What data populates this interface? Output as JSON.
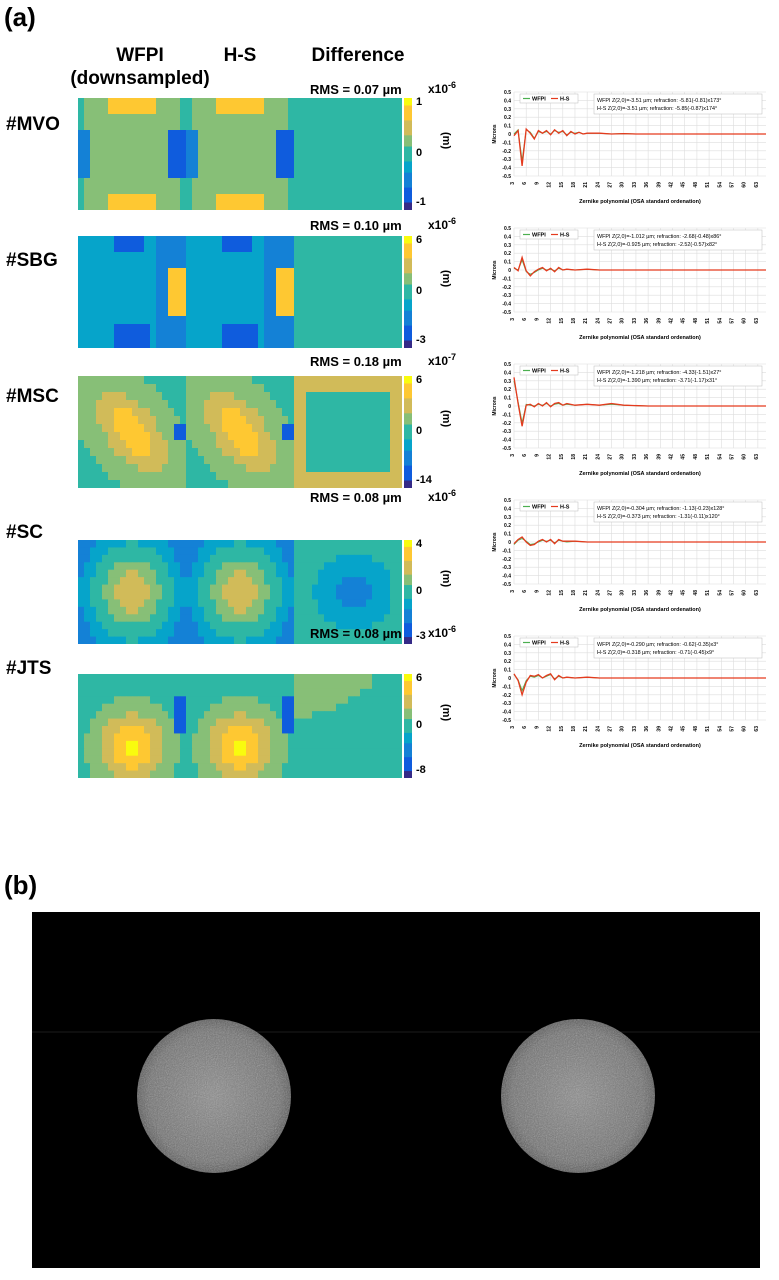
{
  "panel_a_label": "(a)",
  "panel_b_label": "(b)",
  "column_headers": {
    "wfpi": "WFPI\n(downsampled)",
    "hs": "H-S",
    "difference": "Difference"
  },
  "rows": [
    {
      "id": "#MVO",
      "rms": "RMS = 0.07 µm",
      "cbar_exp": "x10",
      "cbar_exp_sup": "-6",
      "cbar_ticks": [
        "1",
        "0",
        "-1"
      ],
      "cbar_unit": "(m)",
      "legend": [
        "WFPI",
        "H-S"
      ],
      "info_wfpi": "WFPI   Z(2,0)=-3.51 µm; refraction: -5.81(-0.81)x173°",
      "info_hs": "H-S    Z(2,0)=-3.51 µm; refraction: -5.85(-0.87)x174°"
    },
    {
      "id": "#SBG",
      "rms": "RMS = 0.10 µm",
      "cbar_exp": "x10",
      "cbar_exp_sup": "-6",
      "cbar_ticks": [
        "6",
        "0",
        "-3"
      ],
      "cbar_unit": "(m)",
      "legend": [
        "WFPI",
        "H-S"
      ],
      "info_wfpi": "WFPI   Z(2,0)=-1.012 µm; refraction: -2.68(-0.48)x86°",
      "info_hs": "H-S    Z(2,0)=-0.925 µm; refraction: -2.52(-0.57)x82°"
    },
    {
      "id": "#MSC",
      "rms": "RMS = 0.18 µm",
      "cbar_exp": "x10",
      "cbar_exp_sup": "-7",
      "cbar_ticks": [
        "6",
        "0",
        "-14"
      ],
      "cbar_unit": "(m)",
      "legend": [
        "WFPI",
        "H-S"
      ],
      "info_wfpi": "WFPI   Z(2,0)=-1.218 µm; refraction: -4.33(-1.51)x27°",
      "info_hs": "H-S    Z(2,0)=-1.390 µm; refraction: -3.71(-1.17)x31°"
    },
    {
      "id": "#SC",
      "rms": "RMS = 0.08 µm",
      "cbar_exp": "x10",
      "cbar_exp_sup": "-6",
      "cbar_ticks": [
        "4",
        "0",
        "-3"
      ],
      "cbar_unit": "(m)",
      "legend": [
        "WFPI",
        "H-S"
      ],
      "info_wfpi": "WFPI   Z(2,0)=-0.304 µm; refraction: -1.13(-0.23)x128°",
      "info_hs": "H-S    Z(2,0)=-0.373 µm; refraction: -1.31(-0.11)x120°"
    },
    {
      "id": "#JTS",
      "rms": "RMS = 0.08 µm",
      "cbar_exp": "x10",
      "cbar_exp_sup": "-6",
      "cbar_ticks": [
        "6",
        "0",
        "-8"
      ],
      "cbar_unit": "(m)",
      "legend": [
        "WFPI",
        "H-S"
      ],
      "info_wfpi": "WFPI   Z(2,0)=-0.290 µm; refraction: -0.62(-0.35)x3°",
      "info_hs": "H-S    Z(2,0)=-0.318 µm; refraction: -0.71(-0.45)x9°"
    }
  ],
  "colors": {
    "wfpi": "#4caf50",
    "hs": "#e53a1e",
    "grid": "#dddddd"
  },
  "chart_data": [
    {
      "type": "line",
      "title": "#MVO",
      "xlabel": "Zernike polynomial (OSA standard ordenation)",
      "ylabel": "Microns",
      "ylim": [
        -0.5,
        0.5
      ],
      "yticks": [
        0.5,
        0.4,
        0.3,
        0.2,
        0.1,
        0,
        -0.1,
        -0.2,
        -0.3,
        -0.4,
        -0.5
      ],
      "xticks": [
        "3",
        "6",
        "9",
        "12",
        "15",
        "18",
        "21",
        "24",
        "27",
        "30",
        "33",
        "36",
        "39",
        "42",
        "45",
        "48",
        "51",
        "54",
        "57",
        "60",
        "63"
      ],
      "series": [
        {
          "name": "WFPI",
          "x": [
            3,
            4,
            5,
            6,
            7,
            8,
            9,
            10,
            11,
            12,
            13,
            14,
            15,
            16,
            17,
            18,
            19,
            20,
            21,
            24,
            27,
            30,
            33,
            36,
            42,
            48,
            54,
            60,
            65
          ],
          "values": [
            0.0,
            0.05,
            -0.32,
            0.05,
            0.02,
            -0.05,
            0.03,
            0.01,
            0.03,
            0.0,
            0.04,
            0.02,
            0.03,
            -0.01,
            0.02,
            0.01,
            0.02,
            0.0,
            0.01,
            0.01,
            0.0,
            0.005,
            0.0,
            0.0,
            0.0,
            0.0,
            0.0,
            0.0,
            0.0
          ]
        },
        {
          "name": "H-S",
          "x": [
            3,
            4,
            5,
            6,
            7,
            8,
            9,
            10,
            11,
            12,
            13,
            14,
            15,
            16,
            17,
            18,
            19,
            20,
            21,
            24,
            27,
            30,
            33,
            36,
            42,
            48,
            54,
            60,
            65
          ],
          "values": [
            -0.02,
            0.04,
            -0.38,
            0.06,
            0.01,
            -0.06,
            0.04,
            0.01,
            0.04,
            -0.01,
            0.05,
            0.01,
            0.04,
            -0.02,
            0.03,
            0.0,
            0.02,
            0.0,
            0.01,
            0.01,
            0.0,
            0.005,
            0.0,
            0.0,
            0.0,
            0.0,
            0.0,
            0.0,
            0.0
          ]
        }
      ]
    },
    {
      "type": "line",
      "title": "#SBG",
      "xlabel": "Zernike polynomial (OSA standard ordenation)",
      "ylabel": "Microns",
      "ylim": [
        -0.5,
        0.5
      ],
      "yticks": [
        0.5,
        0.4,
        0.3,
        0.2,
        0.1,
        0,
        -0.1,
        -0.2,
        -0.3,
        -0.4,
        -0.5
      ],
      "xticks": [
        "3",
        "6",
        "9",
        "12",
        "15",
        "18",
        "21",
        "24",
        "27",
        "30",
        "33",
        "36",
        "39",
        "42",
        "45",
        "48",
        "51",
        "54",
        "57",
        "60",
        "63"
      ],
      "series": [
        {
          "name": "WFPI",
          "x": [
            3,
            4,
            5,
            6,
            7,
            8,
            9,
            10,
            11,
            12,
            13,
            14,
            15,
            16,
            18,
            21,
            24,
            27,
            30,
            36,
            42,
            48,
            54,
            60,
            65
          ],
          "values": [
            0.02,
            0.0,
            0.12,
            -0.02,
            -0.05,
            -0.03,
            0.0,
            0.02,
            0.0,
            0.01,
            -0.01,
            0.02,
            0.0,
            0.01,
            0.0,
            0.01,
            0.0,
            0.0,
            0.0,
            0.0,
            0.0,
            0.0,
            0.0,
            0.0,
            0.0
          ]
        },
        {
          "name": "H-S",
          "x": [
            3,
            4,
            5,
            6,
            7,
            8,
            9,
            10,
            11,
            12,
            13,
            14,
            15,
            16,
            18,
            21,
            24,
            27,
            30,
            36,
            42,
            48,
            54,
            60,
            65
          ],
          "values": [
            0.03,
            -0.01,
            0.15,
            -0.01,
            -0.07,
            -0.02,
            0.01,
            0.03,
            -0.01,
            0.02,
            -0.02,
            0.03,
            0.0,
            0.01,
            0.0,
            0.01,
            0.0,
            0.0,
            0.0,
            0.0,
            0.0,
            0.0,
            0.0,
            0.0,
            0.0
          ]
        }
      ]
    },
    {
      "type": "line",
      "title": "#MSC",
      "xlabel": "Zernike polynomial (OSA standard ordenation)",
      "ylabel": "Microns",
      "ylim": [
        -0.5,
        0.5
      ],
      "yticks": [
        0.5,
        0.4,
        0.3,
        0.2,
        0.1,
        0,
        -0.1,
        -0.2,
        -0.3,
        -0.4,
        -0.5
      ],
      "xticks": [
        "3",
        "6",
        "9",
        "12",
        "15",
        "18",
        "21",
        "24",
        "27",
        "30",
        "33",
        "36",
        "39",
        "42",
        "45",
        "48",
        "51",
        "54",
        "57",
        "60",
        "63"
      ],
      "series": [
        {
          "name": "WFPI",
          "x": [
            3,
            4,
            5,
            6,
            7,
            8,
            9,
            10,
            11,
            12,
            13,
            14,
            15,
            16,
            18,
            21,
            24,
            27,
            30,
            36,
            42,
            48,
            54,
            60,
            65
          ],
          "values": [
            0.3,
            0.05,
            -0.2,
            0.02,
            0.01,
            0.0,
            0.02,
            0.01,
            0.03,
            0.0,
            0.02,
            0.03,
            0.01,
            0.02,
            0.01,
            0.02,
            0.01,
            0.02,
            0.01,
            0.0,
            0.0,
            0.0,
            0.0,
            0.0,
            0.0
          ]
        },
        {
          "name": "H-S",
          "x": [
            3,
            4,
            5,
            6,
            7,
            8,
            9,
            10,
            11,
            12,
            13,
            14,
            15,
            16,
            18,
            21,
            24,
            27,
            30,
            36,
            42,
            48,
            54,
            60,
            65
          ],
          "values": [
            0.34,
            0.03,
            -0.24,
            0.01,
            0.02,
            -0.01,
            0.03,
            0.0,
            0.04,
            -0.01,
            0.03,
            0.04,
            0.01,
            0.03,
            0.01,
            0.02,
            0.01,
            0.03,
            0.01,
            0.0,
            0.0,
            0.0,
            0.0,
            0.0,
            0.0
          ]
        }
      ]
    },
    {
      "type": "line",
      "title": "#SC",
      "xlabel": "Zernike polynomial (OSA standard ordenation)",
      "ylabel": "Microns",
      "ylim": [
        -0.5,
        0.5
      ],
      "yticks": [
        0.5,
        0.4,
        0.3,
        0.2,
        0.1,
        0,
        -0.1,
        -0.2,
        -0.3,
        -0.4,
        -0.5
      ],
      "xticks": [
        "3",
        "6",
        "9",
        "12",
        "15",
        "18",
        "21",
        "24",
        "27",
        "30",
        "33",
        "36",
        "39",
        "42",
        "45",
        "48",
        "51",
        "54",
        "57",
        "60",
        "63"
      ],
      "series": [
        {
          "name": "WFPI",
          "x": [
            3,
            4,
            5,
            6,
            7,
            8,
            9,
            10,
            11,
            12,
            13,
            14,
            15,
            16,
            18,
            21,
            24,
            27,
            30,
            36,
            42,
            48,
            54,
            60,
            65
          ],
          "values": [
            -0.03,
            0.02,
            0.04,
            0.01,
            -0.03,
            -0.02,
            0.0,
            0.02,
            0.01,
            0.02,
            -0.01,
            0.02,
            0.01,
            0.0,
            0.01,
            0.0,
            0.0,
            0.0,
            0.0,
            0.0,
            0.0,
            0.0,
            0.0,
            0.0,
            0.0
          ]
        },
        {
          "name": "H-S",
          "x": [
            3,
            4,
            5,
            6,
            7,
            8,
            9,
            10,
            11,
            12,
            13,
            14,
            15,
            16,
            18,
            21,
            24,
            27,
            30,
            36,
            42,
            48,
            54,
            60,
            65
          ],
          "values": [
            -0.02,
            0.03,
            0.06,
            0.0,
            -0.04,
            -0.03,
            0.01,
            0.03,
            0.0,
            0.03,
            -0.02,
            0.03,
            0.01,
            0.01,
            0.01,
            0.0,
            0.0,
            0.0,
            0.0,
            0.0,
            0.0,
            0.0,
            0.0,
            0.0,
            0.0
          ]
        }
      ]
    },
    {
      "type": "line",
      "title": "#JTS",
      "xlabel": "Zernike polynomial (OSA standard ordenation)",
      "ylabel": "Microns",
      "ylim": [
        -0.5,
        0.5
      ],
      "yticks": [
        0.5,
        0.4,
        0.3,
        0.2,
        0.1,
        0,
        -0.1,
        -0.2,
        -0.3,
        -0.4,
        -0.5
      ],
      "xticks": [
        "3",
        "6",
        "9",
        "12",
        "15",
        "18",
        "21",
        "24",
        "27",
        "30",
        "33",
        "36",
        "39",
        "42",
        "45",
        "48",
        "51",
        "54",
        "57",
        "60",
        "63"
      ],
      "series": [
        {
          "name": "WFPI",
          "x": [
            3,
            4,
            5,
            6,
            7,
            8,
            9,
            10,
            11,
            12,
            13,
            14,
            15,
            16,
            18,
            21,
            24,
            27,
            30,
            36,
            42,
            48,
            54,
            60,
            65
          ],
          "values": [
            0.04,
            -0.02,
            -0.15,
            -0.03,
            0.02,
            0.01,
            0.03,
            0.0,
            0.02,
            0.04,
            -0.01,
            0.02,
            0.0,
            0.01,
            0.0,
            0.01,
            0.0,
            0.0,
            0.0,
            0.0,
            0.0,
            0.0,
            0.0,
            0.0,
            0.0
          ]
        },
        {
          "name": "H-S",
          "x": [
            3,
            4,
            5,
            6,
            7,
            8,
            9,
            10,
            11,
            12,
            13,
            14,
            15,
            16,
            18,
            21,
            24,
            27,
            30,
            36,
            42,
            48,
            54,
            60,
            65
          ],
          "values": [
            0.05,
            -0.03,
            -0.2,
            -0.05,
            0.03,
            0.02,
            0.04,
            0.0,
            0.03,
            0.05,
            -0.02,
            0.03,
            0.0,
            0.01,
            0.0,
            0.01,
            0.0,
            0.0,
            0.0,
            0.0,
            0.0,
            0.0,
            0.0,
            0.0,
            0.0
          ]
        }
      ]
    }
  ]
}
